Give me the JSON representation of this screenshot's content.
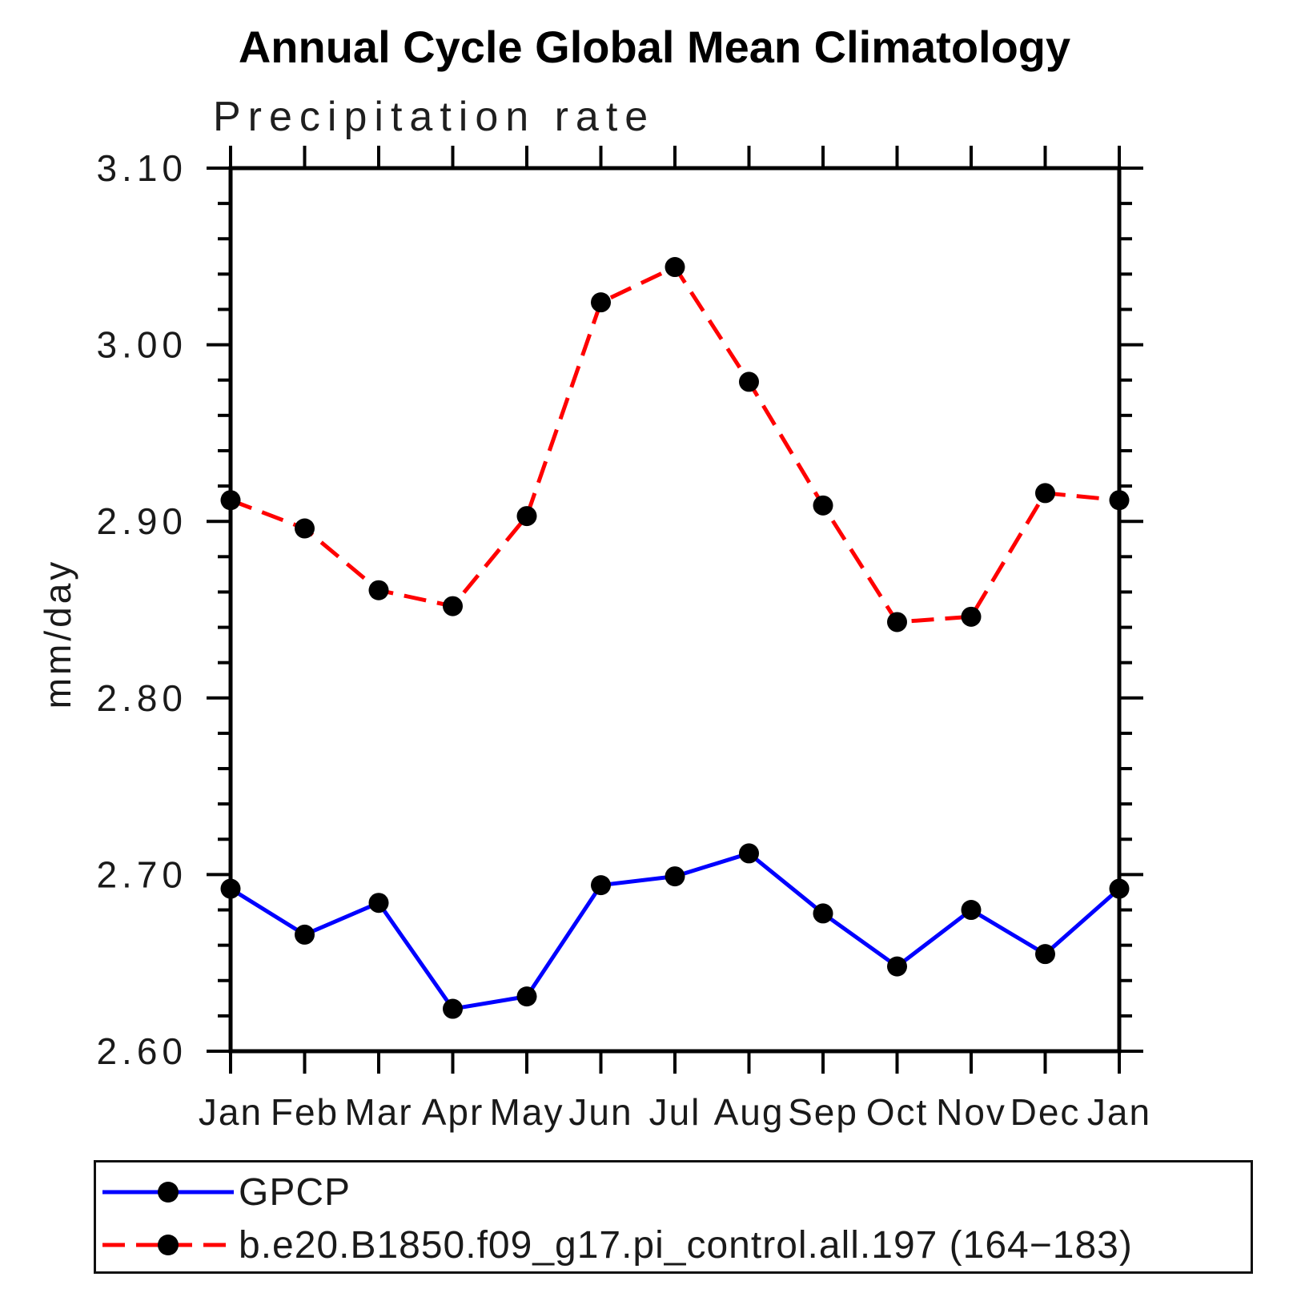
{
  "chart": {
    "title": "Annual Cycle Global Mean Climatology",
    "subtitle": "Precipitation rate",
    "ylabel": "mm/day"
  },
  "chart_data": {
    "type": "line",
    "title": "Annual Cycle Global Mean Climatology",
    "subtitle": "Precipitation rate",
    "xlabel": "",
    "ylabel": "mm/day",
    "categories": [
      "Jan",
      "Feb",
      "Mar",
      "Apr",
      "May",
      "Jun",
      "Jul",
      "Aug",
      "Sep",
      "Oct",
      "Nov",
      "Dec",
      "Jan"
    ],
    "ylim": [
      2.6,
      3.1
    ],
    "y_major_step": 0.1,
    "y_minor_step": 0.02,
    "y_tick_labels": [
      "2.60",
      "2.70",
      "2.80",
      "2.90",
      "3.00",
      "3.10"
    ],
    "grid": false,
    "legend_position": "bottom",
    "series": [
      {
        "name": "GPCP",
        "color": "#0000ff",
        "line_style": "solid",
        "marker": "circle",
        "marker_color": "#000000",
        "values": [
          2.692,
          2.666,
          2.684,
          2.624,
          2.631,
          2.694,
          2.699,
          2.712,
          2.678,
          2.648,
          2.68,
          2.655,
          2.692
        ]
      },
      {
        "name": "b.e20.B1850.f09_g17.pi_control.all.197 (164−183)",
        "color": "#ff0000",
        "line_style": "dashed",
        "marker": "circle",
        "marker_color": "#000000",
        "values": [
          2.912,
          2.896,
          2.861,
          2.852,
          2.903,
          3.024,
          3.044,
          2.979,
          2.909,
          2.843,
          2.846,
          2.916,
          2.912
        ]
      }
    ]
  }
}
